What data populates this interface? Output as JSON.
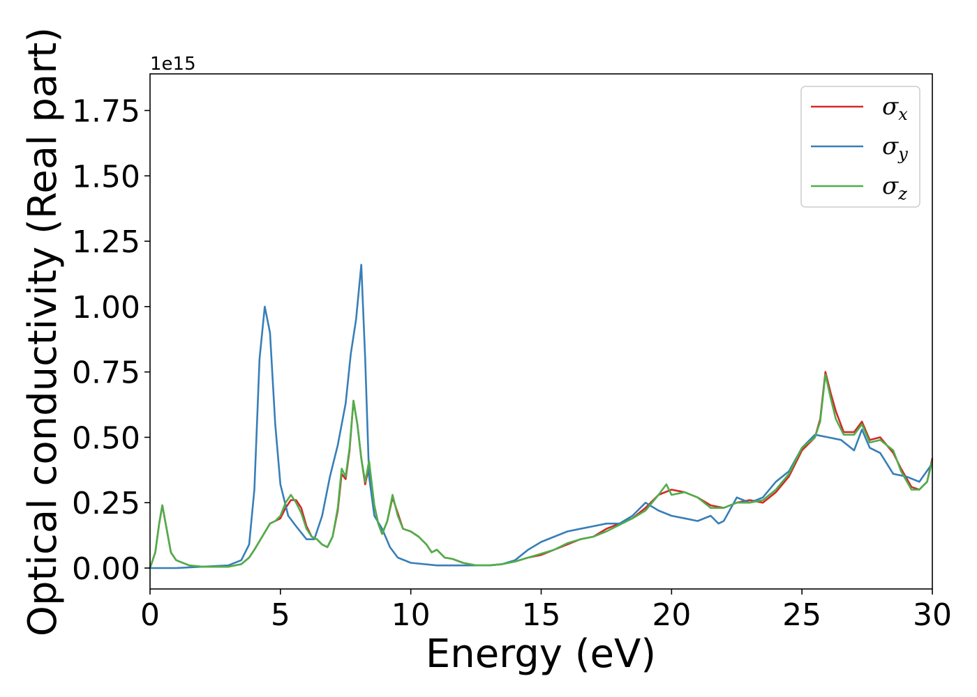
{
  "chart_data": {
    "type": "line",
    "xlabel": "Energy (eV)",
    "ylabel": "Optical conductivity (Real part)",
    "y_offset_label": "1e15",
    "y_scale": 1000000000000000.0,
    "xlim": [
      0,
      30
    ],
    "ylim": [
      -0.08,
      1.89
    ],
    "x_ticks": [
      0,
      5,
      10,
      15,
      20,
      25,
      30
    ],
    "x_tick_labels": [
      "0",
      "5",
      "10",
      "15",
      "20",
      "25",
      "30"
    ],
    "y_ticks": [
      0.0,
      0.25,
      0.5,
      0.75,
      1.0,
      1.25,
      1.5,
      1.75
    ],
    "y_tick_labels": [
      "0.00",
      "0.25",
      "0.50",
      "0.75",
      "1.00",
      "1.25",
      "1.50",
      "1.75"
    ],
    "grid": false,
    "legend_position": "top-right",
    "series": [
      {
        "name": "σx",
        "symbol": "σ",
        "subscript": "x",
        "color": "#d62728",
        "points": [
          [
            0,
            0
          ],
          [
            0.2,
            0.06
          ],
          [
            0.35,
            0.17
          ],
          [
            0.47,
            0.24
          ],
          [
            0.6,
            0.17
          ],
          [
            0.8,
            0.06
          ],
          [
            1.0,
            0.03
          ],
          [
            1.5,
            0.01
          ],
          [
            2.0,
            0.005
          ],
          [
            3.0,
            0.005
          ],
          [
            3.5,
            0.015
          ],
          [
            3.8,
            0.04
          ],
          [
            4.0,
            0.07
          ],
          [
            4.3,
            0.12
          ],
          [
            4.6,
            0.17
          ],
          [
            4.8,
            0.18
          ],
          [
            5.0,
            0.19
          ],
          [
            5.2,
            0.23
          ],
          [
            5.4,
            0.26
          ],
          [
            5.6,
            0.26
          ],
          [
            5.8,
            0.23
          ],
          [
            6.0,
            0.16
          ],
          [
            6.2,
            0.12
          ],
          [
            6.4,
            0.11
          ],
          [
            6.6,
            0.09
          ],
          [
            6.8,
            0.08
          ],
          [
            7.0,
            0.12
          ],
          [
            7.2,
            0.22
          ],
          [
            7.35,
            0.36
          ],
          [
            7.5,
            0.34
          ],
          [
            7.65,
            0.45
          ],
          [
            7.8,
            0.64
          ],
          [
            7.95,
            0.55
          ],
          [
            8.1,
            0.42
          ],
          [
            8.25,
            0.32
          ],
          [
            8.4,
            0.39
          ],
          [
            8.6,
            0.24
          ],
          [
            8.75,
            0.17
          ],
          [
            8.9,
            0.13
          ],
          [
            9.1,
            0.18
          ],
          [
            9.3,
            0.27
          ],
          [
            9.5,
            0.21
          ],
          [
            9.7,
            0.15
          ],
          [
            10.0,
            0.14
          ],
          [
            10.3,
            0.12
          ],
          [
            10.6,
            0.09
          ],
          [
            10.8,
            0.06
          ],
          [
            11.0,
            0.07
          ],
          [
            11.3,
            0.04
          ],
          [
            11.6,
            0.035
          ],
          [
            12.0,
            0.02
          ],
          [
            12.5,
            0.01
          ],
          [
            13.0,
            0.01
          ],
          [
            13.5,
            0.015
          ],
          [
            14.0,
            0.025
          ],
          [
            14.5,
            0.04
          ],
          [
            15.0,
            0.05
          ],
          [
            15.5,
            0.07
          ],
          [
            16.0,
            0.09
          ],
          [
            16.5,
            0.11
          ],
          [
            17.0,
            0.12
          ],
          [
            17.5,
            0.15
          ],
          [
            18.0,
            0.17
          ],
          [
            18.5,
            0.19
          ],
          [
            19.0,
            0.23
          ],
          [
            19.5,
            0.28
          ],
          [
            20.0,
            0.3
          ],
          [
            20.5,
            0.29
          ],
          [
            21.0,
            0.27
          ],
          [
            21.5,
            0.24
          ],
          [
            22.0,
            0.23
          ],
          [
            22.5,
            0.25
          ],
          [
            23.0,
            0.26
          ],
          [
            23.5,
            0.25
          ],
          [
            24.0,
            0.29
          ],
          [
            24.5,
            0.35
          ],
          [
            25.0,
            0.45
          ],
          [
            25.5,
            0.5
          ],
          [
            25.7,
            0.57
          ],
          [
            25.9,
            0.75
          ],
          [
            26.1,
            0.67
          ],
          [
            26.3,
            0.6
          ],
          [
            26.6,
            0.52
          ],
          [
            27.0,
            0.52
          ],
          [
            27.3,
            0.56
          ],
          [
            27.6,
            0.49
          ],
          [
            28.0,
            0.5
          ],
          [
            28.5,
            0.44
          ],
          [
            28.8,
            0.38
          ],
          [
            29.2,
            0.31
          ],
          [
            29.5,
            0.3
          ],
          [
            29.8,
            0.33
          ],
          [
            30.0,
            0.42
          ]
        ]
      },
      {
        "name": "σy",
        "symbol": "σ",
        "subscript": "y",
        "color": "#377eb8",
        "points": [
          [
            0,
            0
          ],
          [
            0.5,
            0.0
          ],
          [
            1.0,
            0.0
          ],
          [
            2.0,
            0.005
          ],
          [
            3.0,
            0.01
          ],
          [
            3.5,
            0.03
          ],
          [
            3.8,
            0.09
          ],
          [
            4.0,
            0.3
          ],
          [
            4.2,
            0.8
          ],
          [
            4.4,
            1.0
          ],
          [
            4.6,
            0.9
          ],
          [
            4.8,
            0.55
          ],
          [
            5.0,
            0.32
          ],
          [
            5.3,
            0.2
          ],
          [
            5.6,
            0.16
          ],
          [
            6.0,
            0.11
          ],
          [
            6.3,
            0.11
          ],
          [
            6.6,
            0.2
          ],
          [
            6.9,
            0.35
          ],
          [
            7.2,
            0.47
          ],
          [
            7.5,
            0.63
          ],
          [
            7.7,
            0.82
          ],
          [
            7.9,
            0.95
          ],
          [
            8.1,
            1.16
          ],
          [
            8.25,
            0.8
          ],
          [
            8.4,
            0.35
          ],
          [
            8.6,
            0.2
          ],
          [
            8.9,
            0.15
          ],
          [
            9.2,
            0.08
          ],
          [
            9.5,
            0.04
          ],
          [
            10.0,
            0.02
          ],
          [
            11.0,
            0.01
          ],
          [
            12.0,
            0.01
          ],
          [
            13.0,
            0.01
          ],
          [
            13.5,
            0.015
          ],
          [
            14.0,
            0.03
          ],
          [
            14.5,
            0.07
          ],
          [
            15.0,
            0.1
          ],
          [
            15.5,
            0.12
          ],
          [
            16.0,
            0.14
          ],
          [
            16.5,
            0.15
          ],
          [
            17.0,
            0.16
          ],
          [
            17.5,
            0.17
          ],
          [
            18.0,
            0.17
          ],
          [
            18.5,
            0.2
          ],
          [
            19.0,
            0.25
          ],
          [
            19.5,
            0.22
          ],
          [
            20.0,
            0.2
          ],
          [
            20.5,
            0.19
          ],
          [
            21.0,
            0.18
          ],
          [
            21.5,
            0.2
          ],
          [
            21.8,
            0.17
          ],
          [
            22.0,
            0.18
          ],
          [
            22.5,
            0.27
          ],
          [
            23.0,
            0.25
          ],
          [
            23.5,
            0.27
          ],
          [
            24.0,
            0.33
          ],
          [
            24.5,
            0.37
          ],
          [
            25.0,
            0.46
          ],
          [
            25.5,
            0.51
          ],
          [
            26.0,
            0.5
          ],
          [
            26.5,
            0.49
          ],
          [
            27.0,
            0.45
          ],
          [
            27.3,
            0.53
          ],
          [
            27.6,
            0.46
          ],
          [
            28.0,
            0.44
          ],
          [
            28.5,
            0.36
          ],
          [
            29.0,
            0.35
          ],
          [
            29.5,
            0.33
          ],
          [
            30.0,
            0.4
          ]
        ]
      },
      {
        "name": "σz",
        "symbol": "σ",
        "subscript": "z",
        "color": "#4daf4a",
        "points": [
          [
            0,
            0
          ],
          [
            0.2,
            0.06
          ],
          [
            0.35,
            0.17
          ],
          [
            0.47,
            0.24
          ],
          [
            0.6,
            0.17
          ],
          [
            0.8,
            0.06
          ],
          [
            1.0,
            0.03
          ],
          [
            1.5,
            0.01
          ],
          [
            2.0,
            0.005
          ],
          [
            3.0,
            0.005
          ],
          [
            3.5,
            0.015
          ],
          [
            3.8,
            0.04
          ],
          [
            4.0,
            0.07
          ],
          [
            4.3,
            0.12
          ],
          [
            4.6,
            0.17
          ],
          [
            4.8,
            0.18
          ],
          [
            5.0,
            0.2
          ],
          [
            5.2,
            0.25
          ],
          [
            5.4,
            0.28
          ],
          [
            5.6,
            0.25
          ],
          [
            5.8,
            0.21
          ],
          [
            6.0,
            0.15
          ],
          [
            6.2,
            0.12
          ],
          [
            6.4,
            0.11
          ],
          [
            6.6,
            0.09
          ],
          [
            6.8,
            0.08
          ],
          [
            7.0,
            0.12
          ],
          [
            7.2,
            0.23
          ],
          [
            7.35,
            0.38
          ],
          [
            7.5,
            0.35
          ],
          [
            7.65,
            0.46
          ],
          [
            7.8,
            0.64
          ],
          [
            7.95,
            0.55
          ],
          [
            8.1,
            0.42
          ],
          [
            8.25,
            0.33
          ],
          [
            8.4,
            0.41
          ],
          [
            8.6,
            0.24
          ],
          [
            8.75,
            0.17
          ],
          [
            8.9,
            0.13
          ],
          [
            9.1,
            0.18
          ],
          [
            9.3,
            0.28
          ],
          [
            9.5,
            0.2
          ],
          [
            9.7,
            0.15
          ],
          [
            10.0,
            0.14
          ],
          [
            10.3,
            0.12
          ],
          [
            10.6,
            0.09
          ],
          [
            10.8,
            0.06
          ],
          [
            11.0,
            0.07
          ],
          [
            11.3,
            0.04
          ],
          [
            11.6,
            0.035
          ],
          [
            12.0,
            0.02
          ],
          [
            12.5,
            0.01
          ],
          [
            13.0,
            0.01
          ],
          [
            13.5,
            0.015
          ],
          [
            14.0,
            0.025
          ],
          [
            14.5,
            0.04
          ],
          [
            15.0,
            0.055
          ],
          [
            15.5,
            0.07
          ],
          [
            16.0,
            0.095
          ],
          [
            16.5,
            0.11
          ],
          [
            17.0,
            0.12
          ],
          [
            17.5,
            0.14
          ],
          [
            18.0,
            0.165
          ],
          [
            18.5,
            0.19
          ],
          [
            19.0,
            0.22
          ],
          [
            19.5,
            0.28
          ],
          [
            19.8,
            0.32
          ],
          [
            20.0,
            0.28
          ],
          [
            20.5,
            0.29
          ],
          [
            21.0,
            0.27
          ],
          [
            21.5,
            0.23
          ],
          [
            22.0,
            0.23
          ],
          [
            22.5,
            0.25
          ],
          [
            23.0,
            0.25
          ],
          [
            23.5,
            0.26
          ],
          [
            24.0,
            0.3
          ],
          [
            24.5,
            0.36
          ],
          [
            25.0,
            0.46
          ],
          [
            25.5,
            0.5
          ],
          [
            25.7,
            0.56
          ],
          [
            25.9,
            0.74
          ],
          [
            26.1,
            0.65
          ],
          [
            26.3,
            0.57
          ],
          [
            26.6,
            0.51
          ],
          [
            27.0,
            0.51
          ],
          [
            27.3,
            0.55
          ],
          [
            27.6,
            0.48
          ],
          [
            28.0,
            0.49
          ],
          [
            28.5,
            0.45
          ],
          [
            28.8,
            0.37
          ],
          [
            29.2,
            0.3
          ],
          [
            29.5,
            0.3
          ],
          [
            29.8,
            0.33
          ],
          [
            30.0,
            0.41
          ]
        ]
      }
    ]
  }
}
